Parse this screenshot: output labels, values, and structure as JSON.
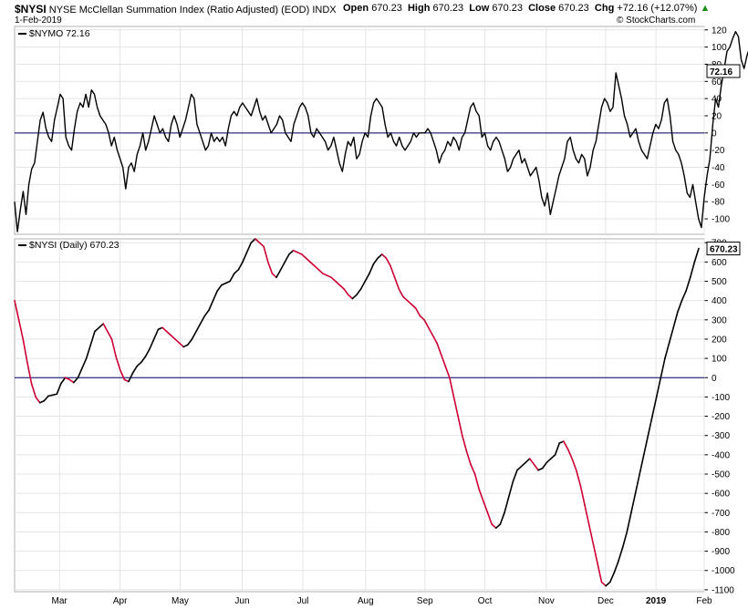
{
  "header": {
    "symbol": "$NYSI",
    "name": "NYSE McClellan Summation Index (Ratio Adjusted) (EOD)",
    "exchange": "INDX",
    "date": "1-Feb-2019",
    "open_label": "Open",
    "open": "670.23",
    "high_label": "High",
    "high": "670.23",
    "low_label": "Low",
    "low": "670.23",
    "close_label": "Close",
    "close": "670.23",
    "chg_label": "Chg",
    "chg": "+72.16 (+12.07%)",
    "up_arrow": "▲",
    "copyright": "© StockCharts.com"
  },
  "colors": {
    "up": "#000000",
    "down": "#cc0033",
    "zero": "#000066",
    "grid": "#e4e4e4"
  },
  "chart_data": [
    {
      "type": "line",
      "legend": "$NYMO 72.16",
      "last_value_label": "72.16",
      "yticks": [
        -100,
        -80,
        -60,
        -40,
        -20,
        0,
        20,
        40,
        60,
        80,
        100,
        120
      ],
      "ylim": [
        -118,
        124
      ],
      "xlim": [
        0,
        242
      ],
      "zero_line": 0,
      "values": [
        -80,
        -115,
        -90,
        -68,
        -95,
        -60,
        -42,
        -35,
        -10,
        15,
        24,
        5,
        -5,
        -10,
        15,
        30,
        45,
        40,
        -5,
        -15,
        -20,
        5,
        25,
        35,
        30,
        45,
        30,
        50,
        45,
        30,
        20,
        15,
        10,
        0,
        -15,
        -5,
        -20,
        -30,
        -40,
        -65,
        -40,
        -35,
        -45,
        -25,
        -15,
        0,
        -20,
        -10,
        5,
        20,
        10,
        0,
        5,
        -5,
        -10,
        10,
        20,
        10,
        -5,
        5,
        15,
        30,
        45,
        40,
        10,
        0,
        -10,
        -20,
        -15,
        0,
        -10,
        -5,
        -10,
        -5,
        -15,
        5,
        20,
        25,
        20,
        30,
        35,
        30,
        25,
        20,
        30,
        40,
        25,
        15,
        20,
        10,
        0,
        5,
        10,
        20,
        15,
        0,
        -5,
        -10,
        10,
        20,
        30,
        35,
        30,
        20,
        0,
        -5,
        5,
        0,
        -5,
        -10,
        -20,
        -15,
        -5,
        -20,
        -35,
        -45,
        -25,
        -10,
        -15,
        -5,
        -30,
        -25,
        -10,
        0,
        -5,
        20,
        35,
        40,
        35,
        30,
        10,
        -5,
        0,
        -10,
        -15,
        -5,
        -15,
        -20,
        -15,
        -10,
        0,
        -5,
        0,
        0,
        0,
        5,
        0,
        -10,
        -20,
        -35,
        -25,
        -20,
        -10,
        -15,
        -5,
        -10,
        -20,
        -5,
        0,
        15,
        30,
        35,
        25,
        20,
        -5,
        0,
        -15,
        -20,
        -10,
        -5,
        -10,
        -20,
        -30,
        -45,
        -40,
        -30,
        -25,
        -20,
        -35,
        -30,
        -40,
        -50,
        -45,
        -40,
        -55,
        -75,
        -85,
        -70,
        -95,
        -80,
        -65,
        -50,
        -40,
        -30,
        -10,
        -5,
        -20,
        -30,
        -35,
        -25,
        -30,
        -50,
        -40,
        -20,
        -10,
        10,
        30,
        40,
        35,
        25,
        30,
        70,
        55,
        40,
        20,
        10,
        -5,
        0,
        5,
        -10,
        -20,
        -25,
        -30,
        -15,
        0,
        10,
        5,
        15,
        35,
        40,
        20,
        -10,
        -20,
        -25,
        -35,
        -50,
        -70,
        -75,
        -60,
        -80,
        -100,
        -110,
        -75,
        -50,
        -30,
        10,
        40,
        30,
        55,
        75,
        95,
        100,
        110,
        118,
        112,
        85,
        75,
        90,
        100,
        70,
        55,
        45,
        60,
        65,
        55,
        78,
        72
      ]
    },
    {
      "type": "line",
      "legend": "$NYSI (Daily) 670.23",
      "last_value_label": "670.23",
      "yticks": [
        -1100,
        -1000,
        -900,
        -800,
        -700,
        -600,
        -500,
        -400,
        -300,
        -200,
        -100,
        0,
        100,
        200,
        300,
        400,
        500,
        600,
        700
      ],
      "ylim": [
        -1110,
        720
      ],
      "xlim": [
        0,
        242
      ],
      "zero_line": 0,
      "up_color": "#000000",
      "down_color": "#cc0033",
      "values": [
        400,
        300,
        200,
        80,
        -30,
        -100,
        -130,
        -120,
        -95,
        -90,
        -85,
        -30,
        0,
        -10,
        -25,
        0,
        50,
        100,
        170,
        240,
        260,
        280,
        240,
        200,
        110,
        40,
        -10,
        -20,
        25,
        60,
        80,
        110,
        150,
        200,
        250,
        260,
        240,
        220,
        200,
        180,
        160,
        170,
        200,
        240,
        280,
        320,
        350,
        400,
        450,
        480,
        490,
        500,
        540,
        560,
        600,
        650,
        700,
        720,
        700,
        680,
        600,
        540,
        520,
        560,
        600,
        640,
        660,
        650,
        640,
        620,
        600,
        580,
        560,
        540,
        530,
        520,
        500,
        480,
        460,
        430,
        410,
        430,
        460,
        500,
        540,
        590,
        620,
        640,
        620,
        580,
        520,
        460,
        420,
        400,
        380,
        360,
        320,
        300,
        260,
        220,
        180,
        120,
        60,
        0,
        -100,
        -200,
        -300,
        -380,
        -450,
        -500,
        -580,
        -640,
        -700,
        -760,
        -780,
        -760,
        -700,
        -620,
        -540,
        -480,
        -460,
        -440,
        -420,
        -450,
        -480,
        -470,
        -440,
        -420,
        -400,
        -340,
        -330,
        -370,
        -420,
        -480,
        -560,
        -660,
        -760,
        -860,
        -960,
        -1060,
        -1080,
        -1060,
        -1010,
        -950,
        -880,
        -800,
        -700,
        -600,
        -500,
        -400,
        -300,
        -200,
        -100,
        0,
        100,
        180,
        260,
        340,
        400,
        450,
        520,
        600,
        670
      ]
    }
  ],
  "x_axis": {
    "labels": [
      "Mar",
      "Apr",
      "May",
      "Jun",
      "Jul",
      "Aug",
      "Sep",
      "Oct",
      "Nov",
      "Dec",
      "2019",
      "Feb"
    ],
    "positions": [
      0.065,
      0.153,
      0.24,
      0.33,
      0.418,
      0.509,
      0.595,
      0.682,
      0.771,
      0.857,
      0.93,
      1.0
    ]
  }
}
